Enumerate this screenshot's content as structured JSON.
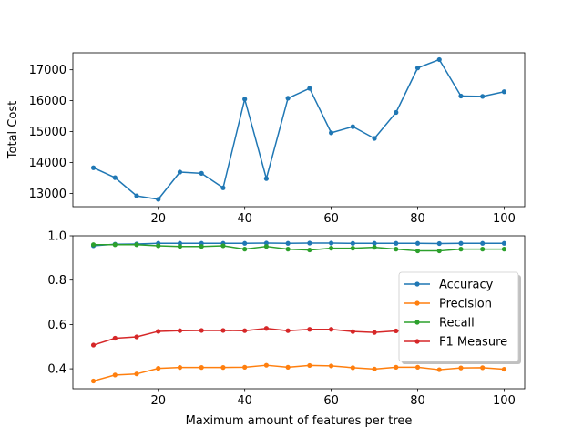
{
  "chart_data": [
    {
      "type": "line",
      "title": "",
      "xlabel": "",
      "ylabel": "Total Cost",
      "xlim": [
        0.25,
        104.75
      ],
      "ylim": [
        12570,
        17550
      ],
      "xticks": [
        20,
        40,
        60,
        80,
        100
      ],
      "yticks": [
        13000,
        14000,
        15000,
        16000,
        17000
      ],
      "grid": false,
      "legend": null,
      "series": [
        {
          "color": "#1f77b4",
          "marker": "circle",
          "x": [
            5,
            10,
            15,
            20,
            25,
            30,
            35,
            40,
            45,
            50,
            55,
            60,
            65,
            70,
            75,
            80,
            85,
            90,
            95,
            100
          ],
          "values": [
            13830,
            13510,
            12920,
            12810,
            13690,
            13650,
            13180,
            16050,
            13480,
            16080,
            16400,
            14960,
            15160,
            14780,
            15620,
            17060,
            17330,
            16150,
            16140,
            16290
          ]
        }
      ]
    },
    {
      "type": "line",
      "title": "",
      "xlabel": "Maximum amount of features per tree",
      "ylabel": "",
      "xlim": [
        0.25,
        104.75
      ],
      "ylim": [
        0.31,
        1.0
      ],
      "xticks": [
        20,
        40,
        60,
        80,
        100
      ],
      "yticks": [
        0.4,
        0.6,
        0.8,
        1.0
      ],
      "grid": false,
      "legend": "center-right",
      "series": [
        {
          "name": "Accuracy",
          "color": "#1f77b4",
          "marker": "circle",
          "x": [
            5,
            10,
            15,
            20,
            25,
            30,
            35,
            40,
            45,
            50,
            55,
            60,
            65,
            70,
            75,
            80,
            85,
            90,
            95,
            100
          ],
          "values": [
            0.955,
            0.962,
            0.963,
            0.966,
            0.966,
            0.966,
            0.966,
            0.966,
            0.967,
            0.966,
            0.967,
            0.967,
            0.966,
            0.966,
            0.966,
            0.966,
            0.965,
            0.966,
            0.966,
            0.966
          ]
        },
        {
          "name": "Precision",
          "color": "#ff7f0e",
          "marker": "circle",
          "x": [
            5,
            10,
            15,
            20,
            25,
            30,
            35,
            40,
            45,
            50,
            55,
            60,
            65,
            70,
            75,
            80,
            85,
            90,
            95,
            100
          ],
          "values": [
            0.345,
            0.372,
            0.377,
            0.402,
            0.406,
            0.406,
            0.406,
            0.407,
            0.416,
            0.407,
            0.415,
            0.413,
            0.405,
            0.399,
            0.407,
            0.407,
            0.396,
            0.404,
            0.405,
            0.398
          ]
        },
        {
          "name": "Recall",
          "color": "#2ca02c",
          "marker": "circle",
          "x": [
            5,
            10,
            15,
            20,
            25,
            30,
            35,
            40,
            45,
            50,
            55,
            60,
            65,
            70,
            75,
            80,
            85,
            90,
            95,
            100
          ],
          "values": [
            0.96,
            0.96,
            0.96,
            0.955,
            0.952,
            0.952,
            0.955,
            0.94,
            0.952,
            0.94,
            0.936,
            0.944,
            0.944,
            0.948,
            0.94,
            0.932,
            0.932,
            0.94,
            0.94,
            0.94
          ]
        },
        {
          "name": "F1 Measure",
          "color": "#d62728",
          "marker": "circle",
          "x": [
            5,
            10,
            15,
            20,
            25,
            30,
            35,
            40,
            45,
            50,
            55,
            60,
            65,
            70,
            75,
            80,
            85,
            90,
            95,
            100
          ],
          "values": [
            0.507,
            0.538,
            0.544,
            0.569,
            0.572,
            0.573,
            0.573,
            0.572,
            0.582,
            0.572,
            0.578,
            0.578,
            0.568,
            0.564,
            0.571,
            0.573,
            0.562,
            0.567,
            0.569,
            0.566
          ]
        }
      ]
    }
  ]
}
